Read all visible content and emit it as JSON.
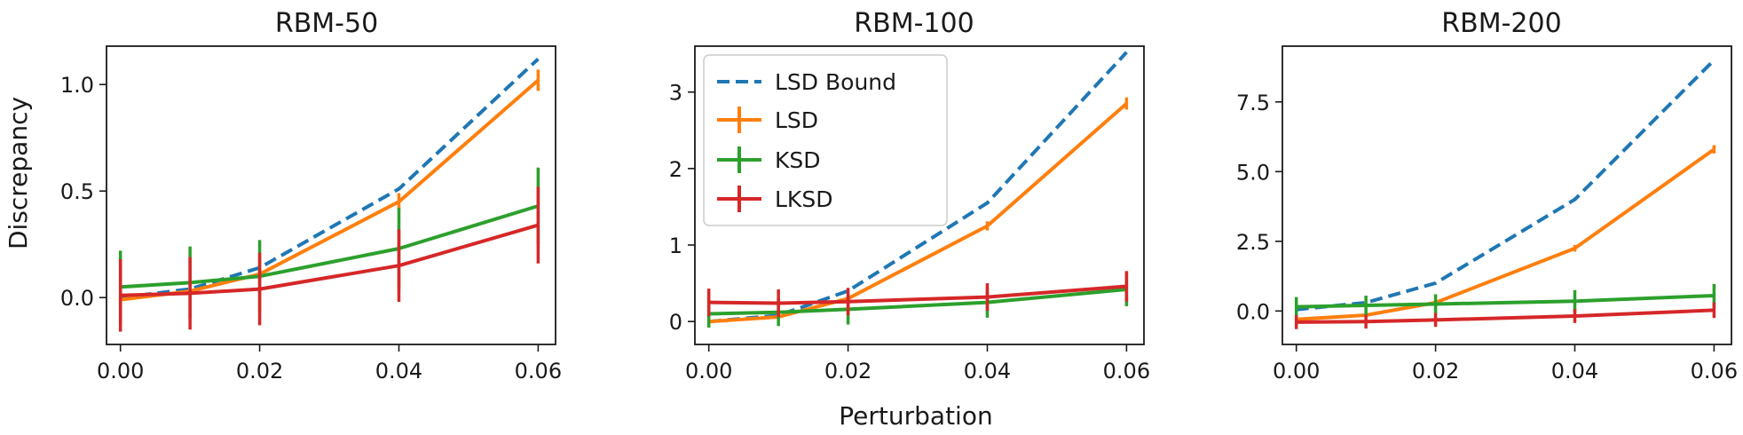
{
  "figure": {
    "shared_xlabel": "Perturbation",
    "shared_ylabel": "Discrepancy"
  },
  "legend": {
    "placement": "upper-left of RBM-100 panel",
    "entries": [
      {
        "label": "LSD Bound",
        "color": "#1f77b4",
        "style": "dashed"
      },
      {
        "label": "LSD",
        "color": "#ff7f0e",
        "style": "solid-errorbar"
      },
      {
        "label": "KSD",
        "color": "#2ca02c",
        "style": "solid-errorbar"
      },
      {
        "label": "LKSD",
        "color": "#d62728",
        "style": "solid-errorbar"
      }
    ]
  },
  "chart_data": [
    {
      "type": "line",
      "title": "RBM-50",
      "xlabel": "",
      "ylabel": "Discrepancy",
      "x": [
        0.0,
        0.01,
        0.02,
        0.04,
        0.06
      ],
      "xticks": [
        "0.00",
        "0.02",
        "0.04",
        "0.06"
      ],
      "xtick_values": [
        0.0,
        0.02,
        0.04,
        0.06
      ],
      "xlim": [
        -0.002,
        0.0625
      ],
      "yticks": [
        "0.0",
        "0.5",
        "1.0"
      ],
      "ytick_values": [
        0.0,
        0.5,
        1.0
      ],
      "ylim": [
        -0.22,
        1.18
      ],
      "series": [
        {
          "name": "LSD Bound",
          "color": "#1f77b4",
          "dashed": true,
          "values": [
            0.0,
            0.04,
            0.14,
            0.51,
            1.12
          ],
          "err": null
        },
        {
          "name": "LSD",
          "color": "#ff7f0e",
          "dashed": false,
          "values": [
            -0.01,
            0.03,
            0.11,
            0.45,
            1.02
          ],
          "err": [
            0.01,
            0.01,
            0.02,
            0.04,
            0.05
          ]
        },
        {
          "name": "KSD",
          "color": "#2ca02c",
          "dashed": false,
          "values": [
            0.05,
            0.07,
            0.1,
            0.23,
            0.43
          ],
          "err": [
            0.17,
            0.17,
            0.17,
            0.19,
            0.18
          ]
        },
        {
          "name": "LKSD",
          "color": "#d62728",
          "dashed": false,
          "values": [
            0.01,
            0.02,
            0.04,
            0.15,
            0.34
          ],
          "err": [
            0.17,
            0.17,
            0.17,
            0.17,
            0.18
          ]
        }
      ]
    },
    {
      "type": "line",
      "title": "RBM-100",
      "xlabel": "Perturbation",
      "ylabel": "",
      "x": [
        0.0,
        0.01,
        0.02,
        0.04,
        0.06
      ],
      "xticks": [
        "0.00",
        "0.02",
        "0.04",
        "0.06"
      ],
      "xtick_values": [
        0.0,
        0.02,
        0.04,
        0.06
      ],
      "xlim": [
        -0.002,
        0.0625
      ],
      "yticks": [
        "0",
        "1",
        "2",
        "3"
      ],
      "ytick_values": [
        0,
        1,
        2,
        3
      ],
      "ylim": [
        -0.3,
        3.6
      ],
      "series": [
        {
          "name": "LSD Bound",
          "color": "#1f77b4",
          "dashed": true,
          "values": [
            0.0,
            0.08,
            0.4,
            1.55,
            3.52
          ],
          "err": null
        },
        {
          "name": "LSD",
          "color": "#ff7f0e",
          "dashed": false,
          "values": [
            0.0,
            0.06,
            0.3,
            1.25,
            2.85
          ],
          "err": [
            0.02,
            0.02,
            0.03,
            0.06,
            0.08
          ]
        },
        {
          "name": "KSD",
          "color": "#2ca02c",
          "dashed": false,
          "values": [
            0.1,
            0.12,
            0.16,
            0.25,
            0.42
          ],
          "err": [
            0.18,
            0.18,
            0.2,
            0.2,
            0.22
          ]
        },
        {
          "name": "LKSD",
          "color": "#d62728",
          "dashed": false,
          "values": [
            0.25,
            0.24,
            0.26,
            0.32,
            0.46
          ],
          "err": [
            0.18,
            0.18,
            0.18,
            0.18,
            0.2
          ]
        }
      ]
    },
    {
      "type": "line",
      "title": "RBM-200",
      "xlabel": "",
      "ylabel": "",
      "x": [
        0.0,
        0.01,
        0.02,
        0.04,
        0.06
      ],
      "xticks": [
        "0.00",
        "0.02",
        "0.04",
        "0.06"
      ],
      "xtick_values": [
        0.0,
        0.02,
        0.04,
        0.06
      ],
      "xlim": [
        -0.002,
        0.0625
      ],
      "yticks": [
        "0.0",
        "2.5",
        "5.0",
        "7.5"
      ],
      "ytick_values": [
        0.0,
        2.5,
        5.0,
        7.5
      ],
      "ylim": [
        -1.2,
        9.5
      ],
      "series": [
        {
          "name": "LSD Bound",
          "color": "#1f77b4",
          "dashed": true,
          "values": [
            0.05,
            0.3,
            1.0,
            4.0,
            9.0
          ],
          "err": null
        },
        {
          "name": "LSD",
          "color": "#ff7f0e",
          "dashed": false,
          "values": [
            -0.3,
            -0.15,
            0.3,
            2.25,
            5.8
          ],
          "err": [
            0.05,
            0.05,
            0.08,
            0.12,
            0.15
          ]
        },
        {
          "name": "KSD",
          "color": "#2ca02c",
          "dashed": false,
          "values": [
            0.15,
            0.2,
            0.25,
            0.35,
            0.55
          ],
          "err": [
            0.35,
            0.35,
            0.35,
            0.4,
            0.42
          ]
        },
        {
          "name": "LKSD",
          "color": "#d62728",
          "dashed": false,
          "values": [
            -0.4,
            -0.38,
            -0.32,
            -0.18,
            0.03
          ],
          "err": [
            0.25,
            0.25,
            0.25,
            0.25,
            0.28
          ]
        }
      ]
    }
  ]
}
